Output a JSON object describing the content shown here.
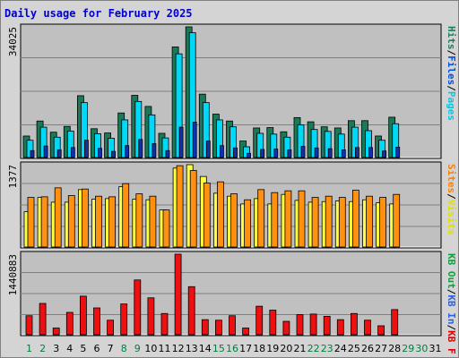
{
  "chart_title": "Daily usage for February 2025",
  "chart_data": [
    {
      "type": "bar",
      "panel": "pages-files-hits",
      "max_label": "34025",
      "ylim": [
        0,
        34025
      ],
      "legend": [
        {
          "name": "Pages",
          "color": "#00c8e8"
        },
        {
          "name": "/",
          "color": "#000000"
        },
        {
          "name": "Files",
          "color": "#0050e0"
        },
        {
          "name": "/",
          "color": "#000000"
        },
        {
          "name": "Hits",
          "color": "#1a8060"
        }
      ],
      "series": [
        {
          "name": "Hits",
          "color": "#1a7a58",
          "values": [
            5600,
            9500,
            6600,
            8100,
            16100,
            7500,
            6400,
            11600,
            16200,
            13300,
            6300,
            28800,
            34025,
            16500,
            11300,
            9500,
            4300,
            7700,
            7800,
            6700,
            10400,
            9300,
            8000,
            7700,
            9600,
            9600,
            5600,
            10500,
            0,
            0,
            0
          ]
        },
        {
          "name": "Files",
          "color": "#00d8f8",
          "values": [
            4500,
            7900,
            5300,
            6900,
            14300,
            6200,
            5000,
            9800,
            14600,
            11100,
            5100,
            27000,
            32500,
            14300,
            9800,
            8000,
            2800,
            6300,
            6100,
            5300,
            8500,
            7300,
            6800,
            6100,
            7900,
            7000,
            4500,
            8800,
            0,
            0,
            0
          ]
        },
        {
          "name": "Pages",
          "color": "#1030b0",
          "values": [
            1800,
            3000,
            2000,
            2600,
            4500,
            2400,
            1600,
            3100,
            4700,
            3600,
            1800,
            7900,
            9200,
            4300,
            3100,
            2500,
            1100,
            2100,
            2200,
            2000,
            2900,
            2500,
            2300,
            2000,
            2600,
            2600,
            1700,
            2700,
            0,
            0,
            0
          ]
        }
      ]
    },
    {
      "type": "bar",
      "panel": "visits-sites",
      "max_label": "1377",
      "ylim": [
        0,
        1377
      ],
      "legend": [
        {
          "name": "Visits",
          "color": "#e0e000"
        },
        {
          "name": "/",
          "color": "#000000"
        },
        {
          "name": "Sites",
          "color": "#ff8000"
        }
      ],
      "series": [
        {
          "name": "Visits",
          "color": "#ffff40",
          "values": [
            590,
            830,
            750,
            750,
            960,
            800,
            810,
            1010,
            800,
            790,
            620,
            1320,
            1377,
            1180,
            900,
            850,
            720,
            810,
            720,
            880,
            780,
            750,
            760,
            770,
            760,
            790,
            740,
            720,
            0,
            0,
            0
          ]
        },
        {
          "name": "Sites",
          "color": "#ff9010",
          "values": [
            830,
            840,
            990,
            860,
            970,
            850,
            840,
            1060,
            890,
            850,
            620,
            1360,
            1280,
            1070,
            1090,
            890,
            790,
            960,
            910,
            940,
            940,
            830,
            850,
            830,
            950,
            850,
            830,
            880,
            0,
            0,
            0
          ]
        }
      ]
    },
    {
      "type": "bar",
      "panel": "kbytes",
      "max_label": "1440883",
      "ylim": [
        0,
        1440883
      ],
      "legend": [
        {
          "name": "KB F",
          "color": "#e00000"
        },
        {
          "name": "/",
          "color": "#000000"
        },
        {
          "name": "KB In",
          "color": "#3060e0"
        },
        {
          "name": "/",
          "color": "#000000"
        },
        {
          "name": "KB Out",
          "color": "#10a040"
        }
      ],
      "series": [
        {
          "name": "KB F",
          "color": "#ee1010",
          "values": [
            340000,
            560000,
            120000,
            400000,
            690000,
            480000,
            260000,
            550000,
            980000,
            660000,
            380000,
            1440883,
            860000,
            270000,
            260000,
            340000,
            120000,
            510000,
            440000,
            240000,
            360000,
            370000,
            330000,
            270000,
            380000,
            260000,
            160000,
            450000,
            0,
            0,
            0
          ]
        }
      ]
    }
  ],
  "days": [
    "1",
    "2",
    "3",
    "4",
    "5",
    "6",
    "7",
    "8",
    "9",
    "10",
    "11",
    "12",
    "13",
    "14",
    "15",
    "16",
    "17",
    "18",
    "19",
    "20",
    "21",
    "22",
    "23",
    "24",
    "25",
    "26",
    "27",
    "28",
    "29",
    "30",
    "31"
  ],
  "weekend_days": [
    1,
    2,
    8,
    9,
    15,
    16,
    22,
    23,
    29,
    30
  ],
  "colors": {
    "title": "#0000cc",
    "weekday": "#000000",
    "weekend": "#008040",
    "plot_bg": "#c0c0c0",
    "grid": "#808080"
  }
}
